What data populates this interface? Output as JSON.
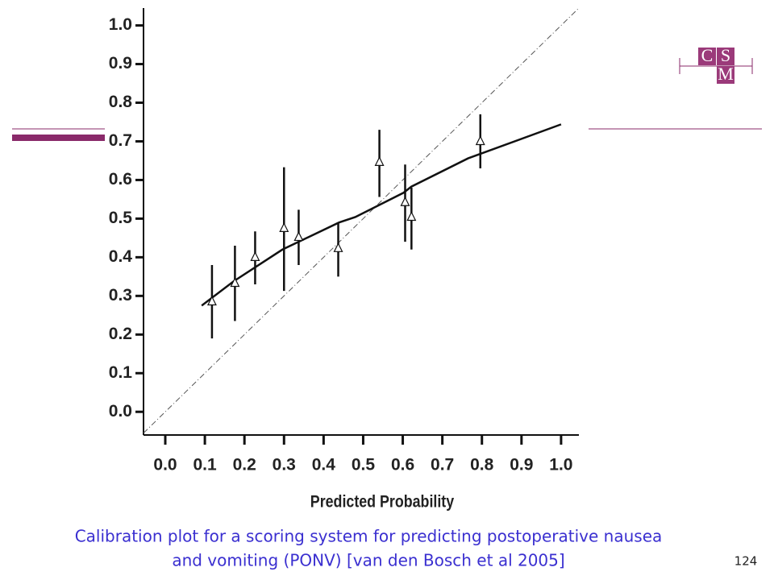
{
  "slide": {
    "caption": [
      "Calibration plot for a scoring system for predicting postoperative nausea",
      "and vomiting (PONV) [van den Bosch et al 2005]"
    ],
    "page_number": "124",
    "logo": [
      "C",
      "S",
      "M"
    ]
  },
  "chart_data": {
    "type": "scatter",
    "x_label": "Predicted Probability",
    "x": [
      0.118,
      0.176,
      0.227,
      0.3,
      0.337,
      0.437,
      0.541,
      0.606,
      0.622,
      0.796
    ],
    "values": [
      0.285,
      0.333,
      0.4,
      0.475,
      0.452,
      0.423,
      0.646,
      0.542,
      0.504,
      0.7
    ],
    "lower": [
      0.19,
      0.235,
      0.33,
      0.313,
      0.38,
      0.35,
      0.556,
      0.44,
      0.42,
      0.63
    ],
    "upper": [
      0.38,
      0.43,
      0.467,
      0.633,
      0.523,
      0.488,
      0.73,
      0.64,
      0.58,
      0.77
    ],
    "curve": {
      "x": [
        0.092,
        0.173,
        0.296,
        0.439,
        0.48,
        0.602,
        0.622,
        0.765,
        1
      ],
      "values": [
        0.275,
        0.338,
        0.42,
        0.49,
        0.504,
        0.567,
        0.583,
        0.656,
        0.744
      ]
    },
    "diagonal": true,
    "color": "#111111",
    "xlim": [
      -0.055,
      1.045
    ],
    "ylim": [
      -0.06,
      1.045
    ],
    "xticks": [
      {
        "value": 0,
        "label": "0.0"
      },
      0.1,
      0.2,
      0.3,
      0.4,
      0.5,
      0.6,
      0.7,
      0.8,
      0.9,
      {
        "value": 1,
        "label": "1.0"
      }
    ],
    "yticks": [
      {
        "value": 0,
        "label": "0.0"
      },
      0.1,
      0.2,
      0.3,
      0.4,
      0.5,
      0.6,
      0.7,
      0.8,
      0.9,
      {
        "value": 1,
        "label": "1.0"
      }
    ]
  }
}
